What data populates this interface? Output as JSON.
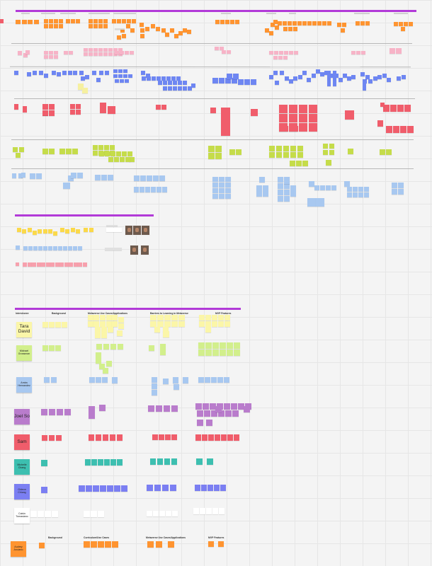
{
  "board": {
    "colors": {
      "orange": "#ff9430",
      "pink": "#f7b3c7",
      "blue": "#6e86f2",
      "yellowGreenLt": "#f6f0a0",
      "red": "#f05d6b",
      "lime": "#c5dc4a",
      "lightBlue": "#a8c8f0",
      "yellow": "#fbd94a",
      "peach": "#f7a0ad",
      "lightYellow": "#fbf6a8",
      "lightGreen": "#d2ef8c",
      "purple": "#b97ccc",
      "teal": "#3dbfb0",
      "violet": "#7b7ff2",
      "white": "#ffffff",
      "frame": "#b23ad8"
    }
  },
  "frames": {
    "top_title": "",
    "middle_title": "",
    "bottom_title": ""
  },
  "interview_table": {
    "headers": [
      "Interviewee",
      "Background",
      "Metaverse Use Cases/Applications",
      "Barriers to Learning in Metaverse",
      "MVP Features"
    ],
    "footer_headers": [
      "Background",
      "Curriculum/Use Cases",
      "Metaverse Use Cases/Applications",
      "MVP Features"
    ],
    "interviewees": [
      {
        "name": "Tara David",
        "color": "#fbf6a8",
        "size": "big"
      },
      {
        "name": "Michael Grossman",
        "color": "#d2ef8c",
        "size": "small"
      },
      {
        "name": "Amira Hernandez",
        "color": "#a8c8f0",
        "size": "small"
      },
      {
        "name": "Joel So",
        "color": "#b97ccc",
        "size": "big"
      },
      {
        "name": "Sam",
        "color": "#f05d6b",
        "size": "big"
      },
      {
        "name": "Michelle Chang",
        "color": "#3dbfb0",
        "size": "small"
      },
      {
        "name": "Gideon Chiang",
        "color": "#7b7ff2",
        "size": "small"
      },
      {
        "name": "Calvin Tomasiano",
        "color": "#ffffff",
        "size": "small"
      },
      {
        "name": "Audrey Anciano",
        "color": "#ff9430",
        "size": "small"
      }
    ]
  }
}
